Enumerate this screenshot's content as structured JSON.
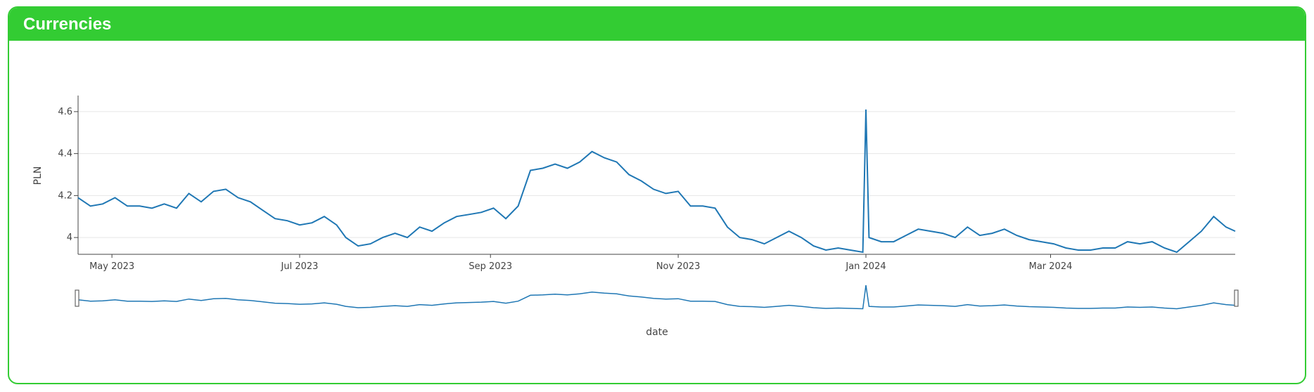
{
  "panel": {
    "title": "Currencies"
  },
  "colors": {
    "accent": "#33cc33",
    "line": "#1f77b4",
    "grid": "#e6e6e6"
  },
  "chart_data": {
    "type": "line",
    "ylabel": "PLN",
    "xlabel": "date",
    "xlim": [
      "2023-04-20",
      "2024-04-30"
    ],
    "ylim": [
      3.92,
      4.67
    ],
    "yticks": [
      4,
      4.2,
      4.4,
      4.6
    ],
    "ytick_labels": [
      "4",
      "4.2",
      "4.4",
      "4.6"
    ],
    "xticks": [
      "2023-05-01",
      "2023-07-01",
      "2023-09-01",
      "2023-11-01",
      "2024-01-01",
      "2024-03-01"
    ],
    "xtick_labels": [
      "May 2023",
      "Jul 2023",
      "Sep 2023",
      "Nov 2023",
      "Jan 2024",
      "Mar 2024"
    ],
    "grid": true,
    "rangeslider": true,
    "series": [
      {
        "x": [
          "2023-04-20",
          "2023-04-24",
          "2023-04-28",
          "2023-05-02",
          "2023-05-06",
          "2023-05-10",
          "2023-05-14",
          "2023-05-18",
          "2023-05-22",
          "2023-05-26",
          "2023-05-30",
          "2023-06-03",
          "2023-06-07",
          "2023-06-11",
          "2023-06-15",
          "2023-06-19",
          "2023-06-23",
          "2023-06-27",
          "2023-07-01",
          "2023-07-05",
          "2023-07-09",
          "2023-07-13",
          "2023-07-16",
          "2023-07-20",
          "2023-07-24",
          "2023-07-28",
          "2023-08-01",
          "2023-08-05",
          "2023-08-09",
          "2023-08-13",
          "2023-08-17",
          "2023-08-21",
          "2023-08-25",
          "2023-08-29",
          "2023-09-02",
          "2023-09-06",
          "2023-09-10",
          "2023-09-14",
          "2023-09-18",
          "2023-09-22",
          "2023-09-26",
          "2023-09-30",
          "2023-10-04",
          "2023-10-08",
          "2023-10-12",
          "2023-10-16",
          "2023-10-20",
          "2023-10-24",
          "2023-10-28",
          "2023-11-01",
          "2023-11-05",
          "2023-11-09",
          "2023-11-13",
          "2023-11-17",
          "2023-11-21",
          "2023-11-25",
          "2023-11-29",
          "2023-12-03",
          "2023-12-07",
          "2023-12-11",
          "2023-12-15",
          "2023-12-19",
          "2023-12-23",
          "2023-12-27",
          "2023-12-31",
          "2024-01-01",
          "2024-01-02",
          "2024-01-06",
          "2024-01-10",
          "2024-01-14",
          "2024-01-18",
          "2024-01-22",
          "2024-01-26",
          "2024-01-30",
          "2024-02-03",
          "2024-02-07",
          "2024-02-11",
          "2024-02-15",
          "2024-02-19",
          "2024-02-23",
          "2024-02-27",
          "2024-03-02",
          "2024-03-06",
          "2024-03-10",
          "2024-03-14",
          "2024-03-18",
          "2024-03-22",
          "2024-03-26",
          "2024-03-30",
          "2024-04-03",
          "2024-04-07",
          "2024-04-11",
          "2024-04-15",
          "2024-04-19",
          "2024-04-23",
          "2024-04-27",
          "2024-04-30"
        ],
        "y": [
          4.19,
          4.15,
          4.16,
          4.19,
          4.15,
          4.15,
          4.14,
          4.16,
          4.14,
          4.21,
          4.17,
          4.22,
          4.23,
          4.19,
          4.17,
          4.13,
          4.09,
          4.08,
          4.06,
          4.07,
          4.1,
          4.06,
          4.0,
          3.96,
          3.97,
          4.0,
          4.02,
          4.0,
          4.05,
          4.03,
          4.07,
          4.1,
          4.11,
          4.12,
          4.14,
          4.09,
          4.15,
          4.32,
          4.33,
          4.35,
          4.33,
          4.36,
          4.41,
          4.38,
          4.36,
          4.3,
          4.27,
          4.23,
          4.21,
          4.22,
          4.15,
          4.15,
          4.14,
          4.05,
          4.0,
          3.99,
          3.97,
          4.0,
          4.03,
          4.0,
          3.96,
          3.94,
          3.95,
          3.94,
          3.93,
          4.61,
          4.0,
          3.98,
          3.98,
          4.01,
          4.04,
          4.03,
          4.02,
          4.0,
          4.05,
          4.01,
          4.02,
          4.04,
          4.01,
          3.99,
          3.98,
          3.97,
          3.95,
          3.94,
          3.94,
          3.95,
          3.95,
          3.98,
          3.97,
          3.98,
          3.95,
          3.93,
          3.98,
          4.03,
          4.1,
          4.05,
          4.03
        ]
      }
    ]
  }
}
